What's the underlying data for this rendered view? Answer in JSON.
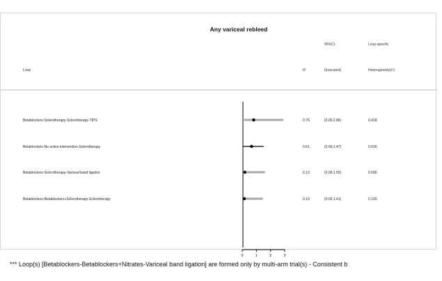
{
  "chart_data": {
    "type": "forest",
    "title": "Any variceal rebleed",
    "columns": {
      "loop_label": "Loop",
      "if_label": "IF",
      "ci_label_line1": "95%CI",
      "ci_label_line2": "(truncated)",
      "het_label_line1": "Loop-specific",
      "het_label_line2": "Heterogeneity(τ²)"
    },
    "xlim": [
      0,
      3
    ],
    "x_ticks": [
      "0",
      "1",
      "2",
      "3"
    ],
    "rows": [
      {
        "loop": "Betablockers-Sclerotherapy-Sclerotherapy-TIPS",
        "if": 0.76,
        "ci_low": 0.0,
        "ci_high": 2.86,
        "if_text": "0.76",
        "ci_text": "(0.00,2.86)",
        "het_text": "0.418"
      },
      {
        "loop": "Betablockers-No active intervention-Sclerotherapy",
        "if": 0.61,
        "ci_low": 0.0,
        "ci_high": 1.47,
        "if_text": "0.61",
        "ci_text": "(0.00,1.47)",
        "het_text": "0.026"
      },
      {
        "loop": "Betablockers-Sclerotherapy-Variceal band ligation",
        "if": 0.13,
        "ci_low": 0.0,
        "ci_high": 1.55,
        "if_text": "0.13",
        "ci_text": "(0.00,1.55)",
        "het_text": "0.000"
      },
      {
        "loop": "Betablockers-Betablockers+Sclerotherapy-Sclerotherapy",
        "if": 0.1,
        "ci_low": 0.0,
        "ci_high": 1.41,
        "if_text": "0.10",
        "ci_text": "(0.00,1.41)",
        "het_text": "0.160"
      }
    ],
    "colors": {
      "ci_bar": "#a9a9a9",
      "point": "#000000",
      "axis": "#000000"
    }
  },
  "footnote": "*** Loop(s)  [Betablockers-Betablockers+Nitrates-Variceal band ligation] are formed only by multi-arm trial(s) - Consistent b"
}
